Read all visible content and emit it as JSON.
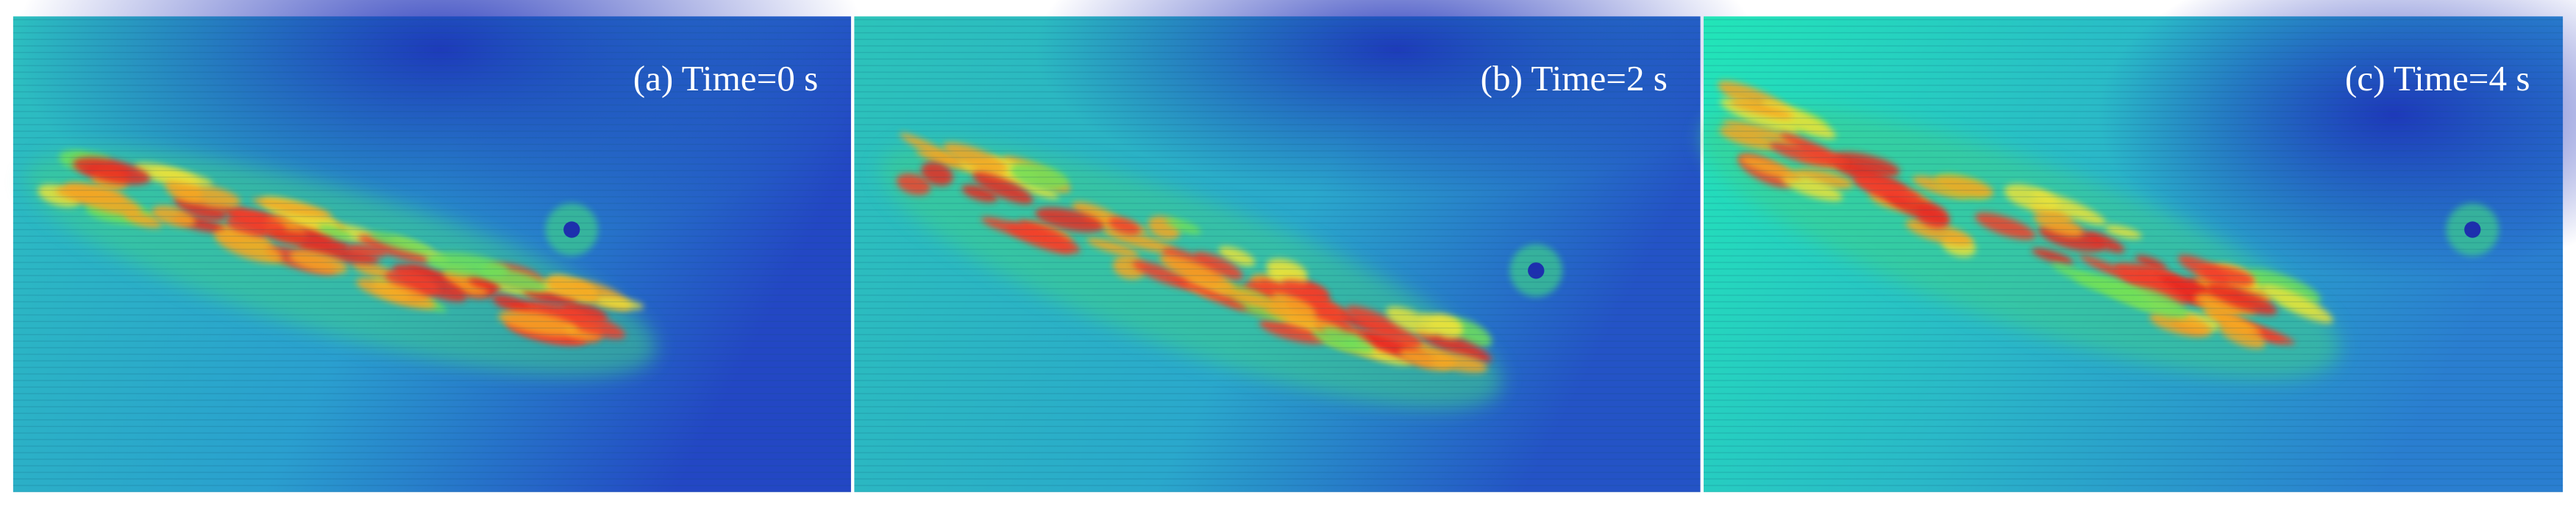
{
  "panels": [
    {
      "label": "(a) Time=0 s"
    },
    {
      "label": "(b) Time=2 s"
    },
    {
      "label": "(c) Time=4 s"
    }
  ]
}
